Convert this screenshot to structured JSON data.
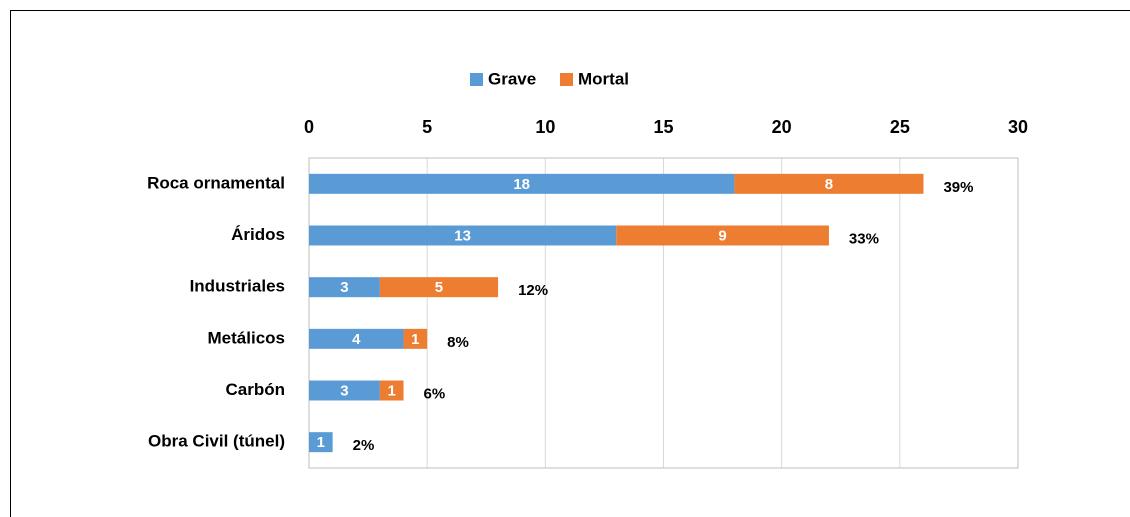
{
  "chart_data": {
    "type": "stacked_barh",
    "categories": [
      "Roca ornamental",
      "Áridos",
      "Industriales",
      "Metálicos",
      "Carbón",
      "Obra Civil (túnel)"
    ],
    "series": [
      {
        "name": "Grave",
        "color": "#5b9bd5",
        "values": [
          18,
          13,
          3,
          4,
          3,
          1
        ]
      },
      {
        "name": "Mortal",
        "color": "#ed7d31",
        "values": [
          8,
          9,
          5,
          1,
          1,
          null
        ]
      }
    ],
    "share": {
      "values": [
        39,
        33,
        12,
        8,
        6,
        2
      ],
      "value_labels": [
        "39%",
        "33%",
        "12%",
        "8%",
        "6%",
        "2%"
      ]
    },
    "xlim": [
      0,
      30
    ],
    "xticks": [
      0,
      5,
      10,
      15,
      20,
      25,
      30
    ],
    "grid": true,
    "legend": "top"
  }
}
